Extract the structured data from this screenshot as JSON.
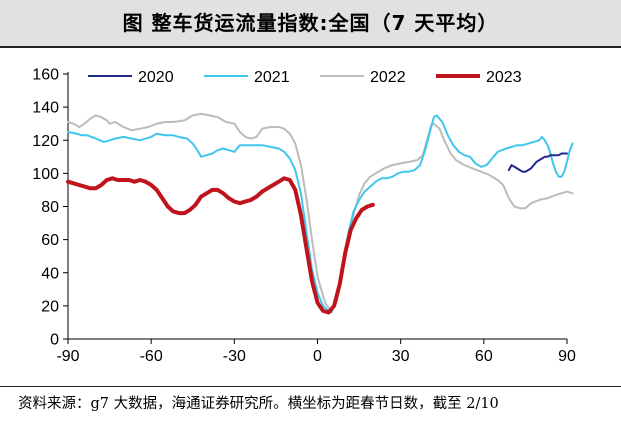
{
  "header": {
    "title": "图    整车货运流量指数:全国（7 天平均）"
  },
  "footer": {
    "source": "资料来源：g7 大数据，海通证券研究所。横坐标为距春节日数，截至 2/10"
  },
  "colors": {
    "s2020": "#1f2a8a",
    "s2021": "#3ec6ee",
    "s2022": "#bcbcbc",
    "s2023": "#c0141c"
  },
  "chart_data": {
    "type": "line",
    "title": "整车货运流量指数:全国（7 天平均）",
    "xlabel": "",
    "ylabel": "",
    "xlim": [
      -90,
      90
    ],
    "ylim": [
      0,
      160
    ],
    "xticks": [
      -90,
      -60,
      -30,
      0,
      30,
      60,
      90
    ],
    "yticks": [
      0,
      20,
      40,
      60,
      80,
      100,
      120,
      140,
      160
    ],
    "grid": false,
    "legend_position": "top",
    "series": [
      {
        "name": "2020",
        "color": "#1f2a8a",
        "width": 2,
        "points": [
          [
            69,
            102
          ],
          [
            70,
            105
          ],
          [
            71,
            104
          ],
          [
            72,
            103
          ],
          [
            73,
            102
          ],
          [
            74,
            101
          ],
          [
            75,
            101
          ],
          [
            76,
            102
          ],
          [
            77,
            103
          ],
          [
            78,
            105
          ],
          [
            79,
            107
          ],
          [
            80,
            108
          ],
          [
            81,
            109
          ],
          [
            82,
            110
          ],
          [
            83,
            110
          ],
          [
            84,
            111
          ],
          [
            85,
            111
          ],
          [
            86,
            111
          ],
          [
            87,
            111
          ],
          [
            88,
            112
          ],
          [
            89,
            112
          ],
          [
            90,
            112
          ]
        ]
      },
      {
        "name": "2021",
        "color": "#3ec6ee",
        "width": 2,
        "points": [
          [
            -90,
            125
          ],
          [
            -87,
            124
          ],
          [
            -85,
            123
          ],
          [
            -83,
            123
          ],
          [
            -80,
            121
          ],
          [
            -77,
            119
          ],
          [
            -75,
            120
          ],
          [
            -73,
            121
          ],
          [
            -70,
            122
          ],
          [
            -67,
            121
          ],
          [
            -64,
            120
          ],
          [
            -62,
            121
          ],
          [
            -60,
            122
          ],
          [
            -58,
            124
          ],
          [
            -55,
            123
          ],
          [
            -52,
            123
          ],
          [
            -50,
            122
          ],
          [
            -47,
            121
          ],
          [
            -45,
            118
          ],
          [
            -43,
            113
          ],
          [
            -42,
            110
          ],
          [
            -40,
            111
          ],
          [
            -38,
            112
          ],
          [
            -36,
            114
          ],
          [
            -34,
            115
          ],
          [
            -32,
            114
          ],
          [
            -30,
            113
          ],
          [
            -28,
            117
          ],
          [
            -25,
            117
          ],
          [
            -22,
            117
          ],
          [
            -20,
            117
          ],
          [
            -17,
            116
          ],
          [
            -14,
            115
          ],
          [
            -12,
            113
          ],
          [
            -10,
            109
          ],
          [
            -8,
            102
          ],
          [
            -6,
            88
          ],
          [
            -4,
            65
          ],
          [
            -2,
            42
          ],
          [
            0,
            28
          ],
          [
            2,
            20
          ],
          [
            4,
            17
          ],
          [
            5,
            16
          ],
          [
            7,
            25
          ],
          [
            9,
            45
          ],
          [
            11,
            63
          ],
          [
            13,
            77
          ],
          [
            15,
            84
          ],
          [
            17,
            89
          ],
          [
            19,
            92
          ],
          [
            21,
            95
          ],
          [
            23,
            97
          ],
          [
            25,
            97
          ],
          [
            27,
            98
          ],
          [
            29,
            100
          ],
          [
            31,
            101
          ],
          [
            33,
            101
          ],
          [
            35,
            102
          ],
          [
            37,
            105
          ],
          [
            39,
            115
          ],
          [
            41,
            128
          ],
          [
            42,
            134
          ],
          [
            43,
            135
          ],
          [
            45,
            131
          ],
          [
            47,
            123
          ],
          [
            49,
            117
          ],
          [
            51,
            113
          ],
          [
            53,
            111
          ],
          [
            55,
            110
          ],
          [
            57,
            106
          ],
          [
            59,
            104
          ],
          [
            61,
            105
          ],
          [
            63,
            109
          ],
          [
            65,
            113
          ],
          [
            68,
            115
          ],
          [
            70,
            116
          ],
          [
            72,
            117
          ],
          [
            74,
            117
          ],
          [
            76,
            118
          ],
          [
            78,
            119
          ],
          [
            80,
            120
          ],
          [
            81,
            122
          ],
          [
            82,
            120
          ],
          [
            83,
            117
          ],
          [
            84,
            112
          ],
          [
            85,
            106
          ],
          [
            86,
            101
          ],
          [
            87,
            98
          ],
          [
            88,
            98
          ],
          [
            89,
            101
          ],
          [
            90,
            107
          ],
          [
            91,
            114
          ],
          [
            92,
            118
          ]
        ]
      },
      {
        "name": "2022",
        "color": "#bcbcbc",
        "width": 2,
        "points": [
          [
            -90,
            131
          ],
          [
            -88,
            130
          ],
          [
            -86,
            128
          ],
          [
            -84,
            130
          ],
          [
            -82,
            133
          ],
          [
            -80,
            135
          ],
          [
            -78,
            134
          ],
          [
            -76,
            132
          ],
          [
            -75,
            130
          ],
          [
            -73,
            131
          ],
          [
            -70,
            128
          ],
          [
            -67,
            126
          ],
          [
            -64,
            127
          ],
          [
            -61,
            128
          ],
          [
            -58,
            130
          ],
          [
            -55,
            131
          ],
          [
            -52,
            131
          ],
          [
            -48,
            132
          ],
          [
            -45,
            135
          ],
          [
            -42,
            136
          ],
          [
            -39,
            135
          ],
          [
            -36,
            134
          ],
          [
            -33,
            131
          ],
          [
            -30,
            130
          ],
          [
            -28,
            125
          ],
          [
            -26,
            122
          ],
          [
            -24,
            121
          ],
          [
            -22,
            122
          ],
          [
            -20,
            127
          ],
          [
            -17,
            128
          ],
          [
            -14,
            128
          ],
          [
            -12,
            127
          ],
          [
            -10,
            124
          ],
          [
            -8,
            118
          ],
          [
            -6,
            105
          ],
          [
            -4,
            85
          ],
          [
            -2,
            60
          ],
          [
            0,
            38
          ],
          [
            2,
            26
          ],
          [
            3,
            21
          ],
          [
            4,
            19
          ],
          [
            5,
            18
          ],
          [
            7,
            23
          ],
          [
            9,
            40
          ],
          [
            11,
            60
          ],
          [
            13,
            75
          ],
          [
            15,
            87
          ],
          [
            17,
            94
          ],
          [
            19,
            98
          ],
          [
            21,
            100
          ],
          [
            24,
            103
          ],
          [
            27,
            105
          ],
          [
            30,
            106
          ],
          [
            33,
            107
          ],
          [
            36,
            108
          ],
          [
            38,
            111
          ],
          [
            40,
            123
          ],
          [
            41,
            129
          ],
          [
            42,
            130
          ],
          [
            44,
            127
          ],
          [
            46,
            119
          ],
          [
            48,
            112
          ],
          [
            50,
            108
          ],
          [
            53,
            105
          ],
          [
            56,
            103
          ],
          [
            59,
            101
          ],
          [
            62,
            99
          ],
          [
            65,
            96
          ],
          [
            67,
            93
          ],
          [
            69,
            85
          ],
          [
            71,
            80
          ],
          [
            73,
            79
          ],
          [
            75,
            79
          ],
          [
            77,
            82
          ],
          [
            80,
            84
          ],
          [
            83,
            85
          ],
          [
            86,
            87
          ],
          [
            88,
            88
          ],
          [
            90,
            89
          ],
          [
            92,
            88
          ]
        ]
      },
      {
        "name": "2023",
        "color": "#c0141c",
        "width": 4,
        "points": [
          [
            -90,
            95
          ],
          [
            -88,
            94
          ],
          [
            -86,
            93
          ],
          [
            -84,
            92
          ],
          [
            -82,
            91
          ],
          [
            -80,
            91
          ],
          [
            -78,
            93
          ],
          [
            -76,
            96
          ],
          [
            -74,
            97
          ],
          [
            -72,
            96
          ],
          [
            -70,
            96
          ],
          [
            -68,
            96
          ],
          [
            -66,
            95
          ],
          [
            -64,
            96
          ],
          [
            -62,
            95
          ],
          [
            -60,
            93
          ],
          [
            -58,
            90
          ],
          [
            -56,
            85
          ],
          [
            -54,
            80
          ],
          [
            -52,
            77
          ],
          [
            -50,
            76
          ],
          [
            -48,
            76
          ],
          [
            -46,
            78
          ],
          [
            -44,
            81
          ],
          [
            -42,
            86
          ],
          [
            -40,
            88
          ],
          [
            -38,
            90
          ],
          [
            -36,
            90
          ],
          [
            -34,
            88
          ],
          [
            -32,
            85
          ],
          [
            -30,
            83
          ],
          [
            -28,
            82
          ],
          [
            -26,
            83
          ],
          [
            -24,
            84
          ],
          [
            -22,
            86
          ],
          [
            -20,
            89
          ],
          [
            -18,
            91
          ],
          [
            -16,
            93
          ],
          [
            -14,
            95
          ],
          [
            -12,
            97
          ],
          [
            -10,
            96
          ],
          [
            -8,
            90
          ],
          [
            -6,
            75
          ],
          [
            -4,
            55
          ],
          [
            -2,
            35
          ],
          [
            0,
            22
          ],
          [
            2,
            17
          ],
          [
            4,
            16
          ],
          [
            6,
            20
          ],
          [
            8,
            33
          ],
          [
            10,
            52
          ],
          [
            12,
            66
          ],
          [
            14,
            73
          ],
          [
            16,
            78
          ],
          [
            18,
            80
          ],
          [
            20,
            81
          ]
        ]
      }
    ]
  }
}
